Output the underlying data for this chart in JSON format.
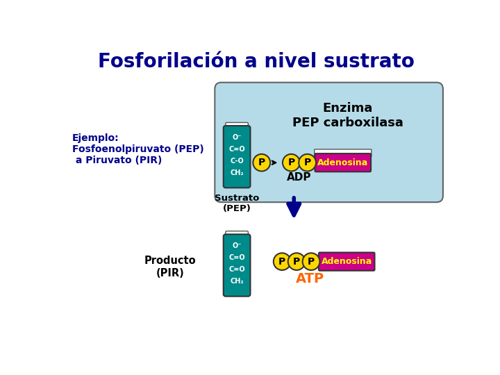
{
  "title": "Fosforilación a nivel sustrato",
  "title_color": "#00008B",
  "title_fontsize": 20,
  "bg_color": "#FFFFFF",
  "enzyme_box_color": "#ADD8E6",
  "enzyme_label": "Enzima\nPEP carboxilasa",
  "enzyme_label_color": "#000000",
  "enzyme_label_fontsize": 13,
  "ejemplo_text": "Ejemplo:\nFosfoenolpiruvato (PEP)\n a Piruvato (PIR)",
  "ejemplo_color": "#00008B",
  "ejemplo_fontsize": 10,
  "sustrato_label": "Sustrato\n(PEP)",
  "sustrato_color": "#000000",
  "producto_label": "Producto\n(PIR)",
  "producto_color": "#000000",
  "pep_molecule_color": "#008B8B",
  "pep_molecule_text": "O⁻\nC=O\nC-O\nCH₂",
  "pir_molecule_text": "O⁻\nC=O\nC=O\nCH₂",
  "pir_molecule_color": "#008B8B",
  "P_circle_color": "#FFD700",
  "P_circle_edge": "#333333",
  "P_text_color": "#000000",
  "adenosina_color": "#CC0088",
  "adenosina_text": "Adenosina",
  "adenosina_text_color": "#FFFF00",
  "adp_label": "ADP",
  "adp_color": "#000000",
  "atp_label": "ATP",
  "atp_color": "#FF6600",
  "arrow_color": "#00008B",
  "reaction_arrow_color": "#000000"
}
